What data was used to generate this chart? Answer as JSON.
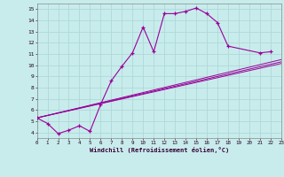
{
  "xlabel": "Windchill (Refroidissement éolien,°C)",
  "bg_color": "#c8ecec",
  "grid_color": "#b0d8d8",
  "line_color": "#990099",
  "xlim": [
    0,
    23
  ],
  "ylim": [
    3.5,
    15.5
  ],
  "main_line_x": [
    0,
    1,
    2,
    3,
    4,
    5,
    6,
    7,
    8,
    9,
    10,
    11,
    12,
    13,
    14,
    15,
    16,
    17,
    18,
    21,
    22
  ],
  "main_line_y": [
    5.3,
    4.8,
    3.9,
    4.2,
    4.6,
    4.1,
    6.5,
    8.6,
    9.9,
    11.1,
    13.4,
    11.2,
    14.6,
    14.6,
    14.8,
    15.1,
    14.6,
    13.8,
    11.7,
    11.1,
    11.2
  ],
  "straight_lines": [
    {
      "x0": 0,
      "y0": 5.3,
      "x1": 23,
      "y1": 10.5
    },
    {
      "x0": 0,
      "y0": 5.3,
      "x1": 23,
      "y1": 10.3
    },
    {
      "x0": 0,
      "y0": 5.3,
      "x1": 23,
      "y1": 10.15
    }
  ],
  "yticks": [
    4,
    5,
    6,
    7,
    8,
    9,
    10,
    11,
    12,
    13,
    14,
    15
  ],
  "xticks": [
    0,
    1,
    2,
    3,
    4,
    5,
    6,
    7,
    8,
    9,
    10,
    11,
    12,
    13,
    14,
    15,
    16,
    17,
    18,
    19,
    20,
    21,
    22,
    23
  ]
}
